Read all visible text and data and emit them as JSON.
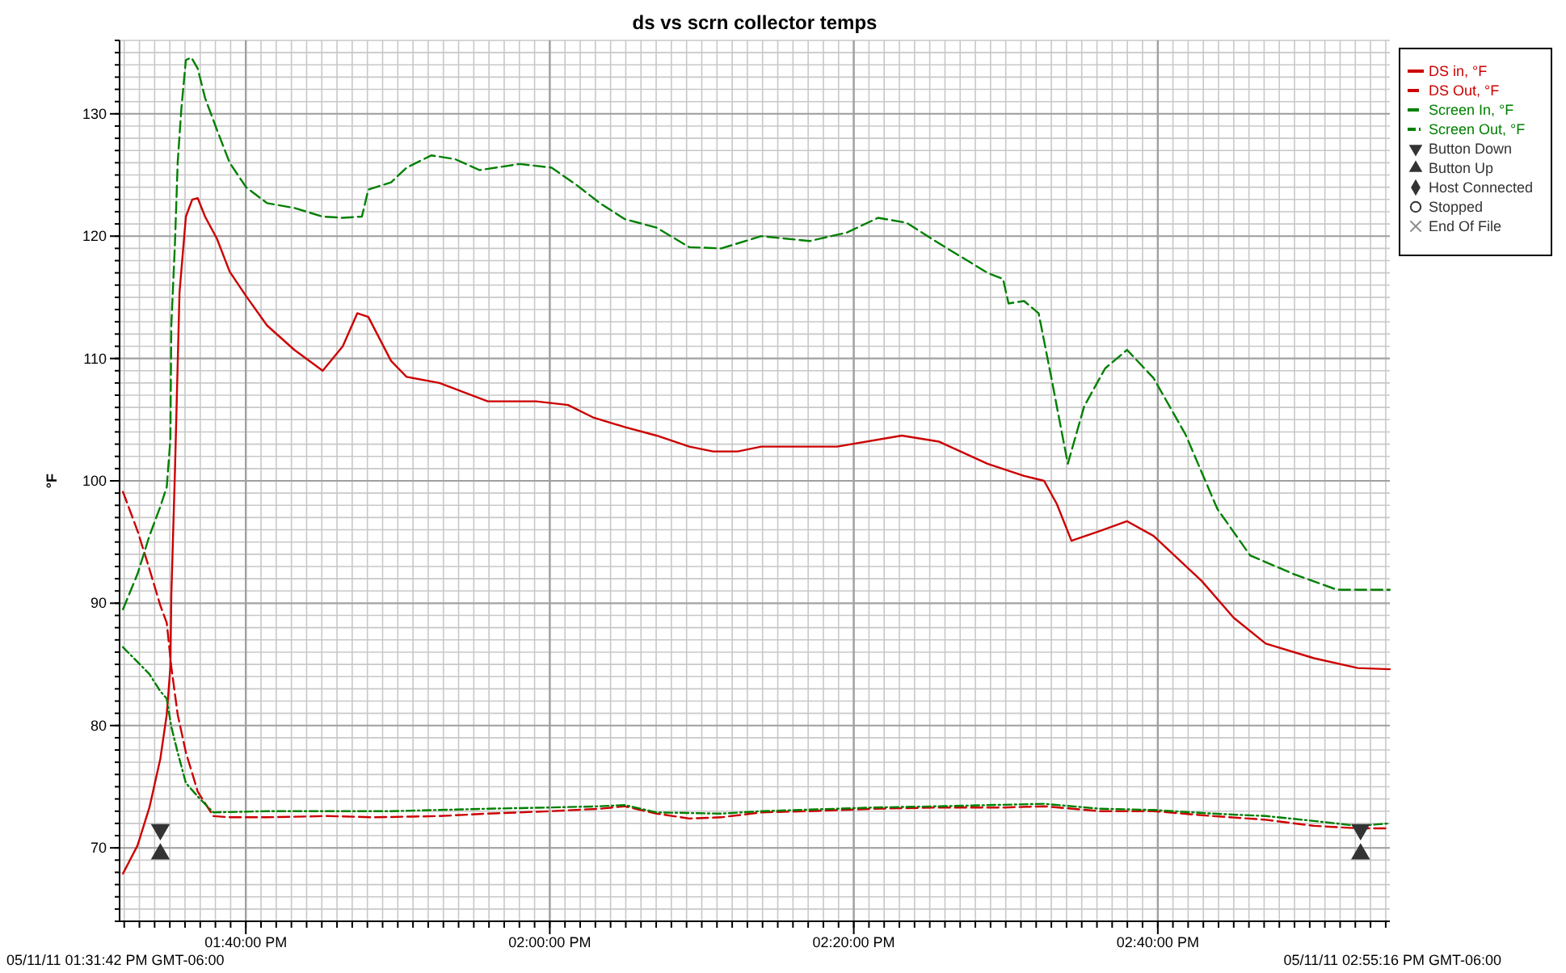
{
  "chart_data": {
    "type": "line",
    "title": "ds vs scrn collector temps",
    "ylabel": "°F",
    "xlim": [
      13.5283,
      14.9211
    ],
    "ylim": [
      64,
      136
    ],
    "xticks": [
      {
        "value": 13.6667,
        "label": "01:40:00 PM"
      },
      {
        "value": 14,
        "label": "02:00:00 PM"
      },
      {
        "value": 14.3333,
        "label": "02:20:00 PM"
      },
      {
        "value": 14.6667,
        "label": "02:40:00 PM"
      }
    ],
    "yticks": [
      70,
      80,
      90,
      100,
      110,
      120,
      130
    ],
    "grid": true,
    "legend": "top right",
    "marker": "none",
    "annotations": [
      "05/11/11 01:31:42 PM GMT-06:00",
      "05/11/11 02:55:16 PM GMT-06:00"
    ],
    "series": [
      {
        "name": "DS in, °F",
        "color": "#cc0000",
        "line_style": "solid",
        "x": [
          13.532,
          13.548,
          13.561,
          13.573,
          13.58,
          13.584,
          13.585,
          13.589,
          13.594,
          13.601,
          13.608,
          13.614,
          13.622,
          13.635,
          13.649,
          13.667,
          13.69,
          13.72,
          13.751,
          13.773,
          13.789,
          13.801,
          13.826,
          13.843,
          13.879,
          13.932,
          13.985,
          14.02,
          14.047,
          14.082,
          14.117,
          14.153,
          14.179,
          14.206,
          14.232,
          14.315,
          14.386,
          14.427,
          14.48,
          14.52,
          14.542,
          14.556,
          14.572,
          14.603,
          14.633,
          14.662,
          14.715,
          14.75,
          14.785,
          14.838,
          14.886,
          14.921
        ],
        "values": [
          67.9,
          70.2,
          73.3,
          77.3,
          80.9,
          84.8,
          90.6,
          100.8,
          115.4,
          121.6,
          123.0,
          123.1,
          121.6,
          119.8,
          117.1,
          115.1,
          112.7,
          110.7,
          109.0,
          111.0,
          113.7,
          113.4,
          109.8,
          108.5,
          108.0,
          106.5,
          106.5,
          106.2,
          105.2,
          104.4,
          103.7,
          102.8,
          102.4,
          102.4,
          102.8,
          102.8,
          103.7,
          103.2,
          101.4,
          100.4,
          100.0,
          98.1,
          95.1,
          95.9,
          96.7,
          95.5,
          91.8,
          88.8,
          86.7,
          85.5,
          84.7,
          84.6
        ]
      },
      {
        "name": "DS Out, °F",
        "color": "#cc0000",
        "line_style": "dashed",
        "x": [
          13.532,
          13.548,
          13.561,
          13.573,
          13.58,
          13.585,
          13.592,
          13.601,
          13.614,
          13.631,
          13.649,
          13.69,
          13.755,
          13.808,
          13.879,
          13.932,
          14.001,
          14.055,
          14.082,
          14.117,
          14.153,
          14.188,
          14.232,
          14.285,
          14.356,
          14.427,
          14.497,
          14.542,
          14.603,
          14.662,
          14.727,
          14.785,
          14.838,
          14.886,
          14.921
        ],
        "values": [
          99.1,
          95.9,
          92.8,
          89.8,
          88.4,
          84.8,
          80.9,
          77.8,
          74.6,
          72.6,
          72.5,
          72.5,
          72.6,
          72.5,
          72.6,
          72.8,
          73.0,
          73.2,
          73.4,
          72.8,
          72.4,
          72.5,
          72.9,
          73.0,
          73.2,
          73.3,
          73.3,
          73.4,
          73.0,
          73.0,
          72.6,
          72.3,
          71.8,
          71.6,
          71.6
        ]
      },
      {
        "name": "Screen In, °F",
        "color": "#008000",
        "line_style": "dashed",
        "x": [
          13.532,
          13.548,
          13.561,
          13.573,
          13.58,
          13.584,
          13.585,
          13.589,
          13.592,
          13.596,
          13.601,
          13.607,
          13.614,
          13.622,
          13.635,
          13.649,
          13.667,
          13.69,
          13.72,
          13.751,
          13.773,
          13.794,
          13.801,
          13.826,
          13.843,
          13.87,
          13.896,
          13.923,
          13.967,
          14.002,
          14.029,
          14.055,
          14.082,
          14.117,
          14.153,
          14.188,
          14.232,
          14.285,
          14.326,
          14.36,
          14.391,
          14.427,
          14.48,
          14.497,
          14.503,
          14.52,
          14.536,
          14.55,
          14.568,
          14.586,
          14.609,
          14.633,
          14.662,
          14.697,
          14.732,
          14.768,
          14.815,
          14.863,
          14.898,
          14.921
        ],
        "values": [
          89.5,
          92.4,
          95.5,
          97.9,
          99.5,
          103.4,
          112.7,
          119.4,
          126.0,
          130.4,
          134.4,
          134.6,
          133.7,
          131.3,
          128.7,
          126.0,
          124.0,
          122.7,
          122.3,
          121.6,
          121.5,
          121.6,
          123.8,
          124.4,
          125.6,
          126.6,
          126.3,
          125.4,
          125.9,
          125.6,
          124.2,
          122.7,
          121.4,
          120.7,
          119.1,
          119.0,
          120.0,
          119.6,
          120.3,
          121.5,
          121.1,
          119.4,
          117.0,
          116.5,
          114.5,
          114.7,
          113.7,
          108.4,
          101.4,
          106.1,
          109.2,
          110.7,
          108.4,
          103.8,
          97.7,
          93.9,
          92.4,
          91.1,
          91.1,
          91.1
        ]
      },
      {
        "name": "Screen Out, °F",
        "color": "#008000",
        "line_style": "dotted",
        "x": [
          13.532,
          13.548,
          13.561,
          13.573,
          13.58,
          13.585,
          13.592,
          13.601,
          13.614,
          13.631,
          13.69,
          13.755,
          13.826,
          13.932,
          14.001,
          14.055,
          14.082,
          14.117,
          14.188,
          14.232,
          14.356,
          14.427,
          14.542,
          14.603,
          14.662,
          14.727,
          14.785,
          14.838,
          14.886,
          14.921
        ],
        "values": [
          86.4,
          85.2,
          84.2,
          82.8,
          82.2,
          79.9,
          77.8,
          75.3,
          74.2,
          72.9,
          73.0,
          73.0,
          73.0,
          73.2,
          73.3,
          73.4,
          73.5,
          72.9,
          72.8,
          73.0,
          73.3,
          73.4,
          73.6,
          73.2,
          73.1,
          72.8,
          72.6,
          72.2,
          71.8,
          72.0
        ]
      },
      {
        "name": "Button Down",
        "type": "scatter",
        "color": "#333333",
        "marker": "triangle-down",
        "x": [
          13.573,
          14.889
        ],
        "values": [
          71.5,
          71.5
        ]
      },
      {
        "name": "Button Up",
        "type": "scatter",
        "color": "#333333",
        "marker": "triangle",
        "x": [
          13.573,
          14.889
        ],
        "values": [
          69.5,
          69.5
        ]
      },
      {
        "name": "Host Connected",
        "type": "scatter",
        "color": "#333333",
        "marker": "diamond"
      },
      {
        "name": "Stopped",
        "type": "scatter",
        "color": "#333333",
        "marker": "circle"
      },
      {
        "name": "End Of File",
        "type": "scatter",
        "color": "#888888",
        "marker": "cross"
      }
    ]
  }
}
